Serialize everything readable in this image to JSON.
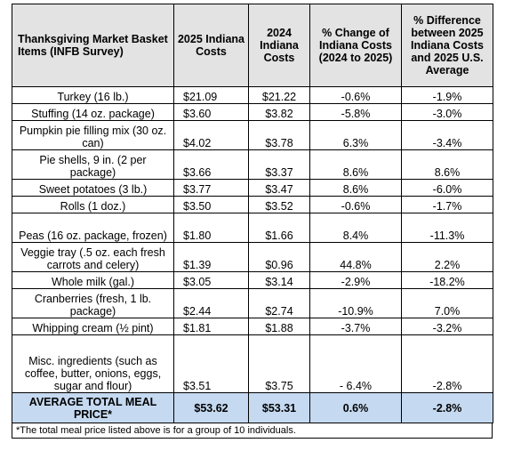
{
  "headers": {
    "item": "Thanksgiving Market Basket Items (INFB Survey)",
    "cost2025": "2025 Indiana Costs",
    "cost2024": "2024 Indiana Costs",
    "change": "% Change of Indiana Costs (2024 to 2025)",
    "diff": "% Difference between 2025 Indiana Costs and 2025 U.S. Average"
  },
  "rows": [
    {
      "item": "Turkey (16 lb.)",
      "c2025": "$21.09",
      "c2024": "$21.22",
      "change": "-0.6%",
      "diff": "-1.9%"
    },
    {
      "item": "Stuffing (14 oz. package)",
      "c2025": "$3.60",
      "c2024": "$3.82",
      "change": "-5.8%",
      "diff": "-3.0%"
    },
    {
      "item": "Pumpkin pie filling mix (30 oz. can)",
      "c2025": "$4.02",
      "c2024": "$3.78",
      "change": "6.3%",
      "diff": "-3.4%"
    },
    {
      "item": "Pie shells, 9 in. (2 per package)",
      "c2025": "$3.66",
      "c2024": "$3.37",
      "change": "8.6%",
      "diff": "8.6%"
    },
    {
      "item": "Sweet potatoes (3 lb.)",
      "c2025": "$3.77",
      "c2024": "$3.47",
      "change": "8.6%",
      "diff": "-6.0%"
    },
    {
      "item": "Rolls (1 doz.)",
      "c2025": "$3.50",
      "c2024": "$3.52",
      "change": "-0.6%",
      "diff": "-1.7%"
    },
    {
      "item": "Peas (16 oz. package, frozen)",
      "c2025": "$1.80",
      "c2024": "$1.66",
      "change": "8.4%",
      "diff": "-11.3%"
    },
    {
      "item": "Veggie tray (.5 oz. each fresh carrots and celery)",
      "c2025": "$1.39",
      "c2024": "$0.96",
      "change": "44.8%",
      "diff": "2.2%"
    },
    {
      "item": "Whole milk (gal.)",
      "c2025": "$3.05",
      "c2024": "$3.14",
      "change": "-2.9%",
      "diff": "-18.2%"
    },
    {
      "item": "Cranberries (fresh, 1 lb. package)",
      "c2025": "$2.44",
      "c2024": "$2.74",
      "change": "-10.9%",
      "diff": "7.0%"
    },
    {
      "item": "Whipping cream (½ pint)",
      "c2025": "$1.81",
      "c2024": "$1.88",
      "change": "-3.7%",
      "diff": "-3.2%"
    },
    {
      "item": "Misc. ingredients (such as coffee, butter, onions, eggs, sugar and flour)",
      "c2025": "$3.51",
      "c2024": "$3.75",
      "change": "- 6.4%",
      "diff": "-2.8%"
    }
  ],
  "average": {
    "label": "AVERAGE TOTAL MEAL PRICE*",
    "c2025": "$53.62",
    "c2024": "$53.31",
    "change": "0.6%",
    "diff": "-2.8%"
  },
  "footnote": "*The total meal price listed above is for a group of 10 individuals.",
  "colors": {
    "header_bg": "#e3e3e3",
    "average_bg": "#c5d9f1"
  }
}
